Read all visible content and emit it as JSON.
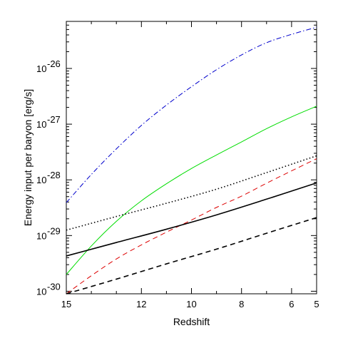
{
  "chart_data": {
    "type": "line",
    "title": "",
    "xlabel": "Redshift",
    "ylabel": "Energy input per baryon [erg/s]",
    "xlim": [
      15,
      5
    ],
    "ylim": [
      9e-31,
      7e-26
    ],
    "yscale": "log",
    "grid": false,
    "x_ticks": [
      {
        "value": 15,
        "label": "15"
      },
      {
        "value": 12,
        "label": "12"
      },
      {
        "value": 10,
        "label": "10"
      },
      {
        "value": 8,
        "label": "8"
      },
      {
        "value": 6,
        "label": "6"
      },
      {
        "value": 5,
        "label": "5"
      }
    ],
    "y_ticks": [
      {
        "value": 1e-30,
        "base": "10",
        "exp": "-30"
      },
      {
        "value": 1e-29,
        "base": "10",
        "exp": "-29"
      },
      {
        "value": 1e-28,
        "base": "10",
        "exp": "-28"
      },
      {
        "value": 1e-27,
        "base": "10",
        "exp": "-27"
      },
      {
        "value": 1e-26,
        "base": "10",
        "exp": "-26"
      }
    ],
    "series": [
      {
        "color": "#0000cc",
        "dash": "dashdot",
        "width": 1,
        "x": [
          15,
          14,
          13,
          12,
          11,
          10,
          9,
          8,
          7,
          6,
          5
        ],
        "y": [
          3.9e-29,
          1.25e-28,
          3.6e-28,
          9.5e-28,
          2.2e-27,
          4.7e-27,
          9.5e-27,
          1.75e-26,
          2.9e-26,
          4.1e-26,
          5.5e-26
        ]
      },
      {
        "color": "#00dd00",
        "dash": "solid",
        "width": 1,
        "x": [
          15,
          14,
          13,
          12,
          11,
          10,
          9,
          8,
          7,
          6,
          5
        ],
        "y": [
          2e-30,
          6.5e-30,
          1.8e-29,
          4.2e-29,
          8.5e-29,
          1.6e-28,
          2.8e-28,
          4.8e-28,
          8.3e-28,
          1.35e-27,
          2.1e-27
        ]
      },
      {
        "color": "#000000",
        "dash": "dotted",
        "width": 1.6,
        "x": [
          15,
          13,
          11,
          9,
          7,
          5
        ],
        "y": [
          1.25e-29,
          2.2e-29,
          3.8e-29,
          6.8e-29,
          1.35e-28,
          2.7e-28
        ]
      },
      {
        "color": "#dd0000",
        "dash": "dashed",
        "width": 1,
        "x": [
          15,
          14,
          13,
          12,
          11,
          10,
          9,
          8,
          7,
          6,
          5
        ],
        "y": [
          9e-31,
          1.9e-30,
          3.8e-30,
          6.8e-30,
          1.15e-29,
          1.9e-29,
          3.2e-29,
          5.1e-29,
          8.7e-29,
          1.45e-28,
          2.4e-28
        ]
      },
      {
        "color": "#000000",
        "dash": "solid",
        "width": 1.6,
        "x": [
          15,
          13,
          11,
          9,
          7,
          5
        ],
        "y": [
          4.3e-30,
          7.5e-30,
          1.3e-29,
          2.35e-29,
          4.5e-29,
          8.8e-29
        ]
      },
      {
        "color": "#000000",
        "dash": "dashed",
        "width": 1.6,
        "x": [
          15,
          13,
          11,
          9,
          7,
          5
        ],
        "y": [
          9e-31,
          1.65e-30,
          3.1e-30,
          5.7e-30,
          1.1e-29,
          2.1e-29
        ]
      }
    ]
  }
}
